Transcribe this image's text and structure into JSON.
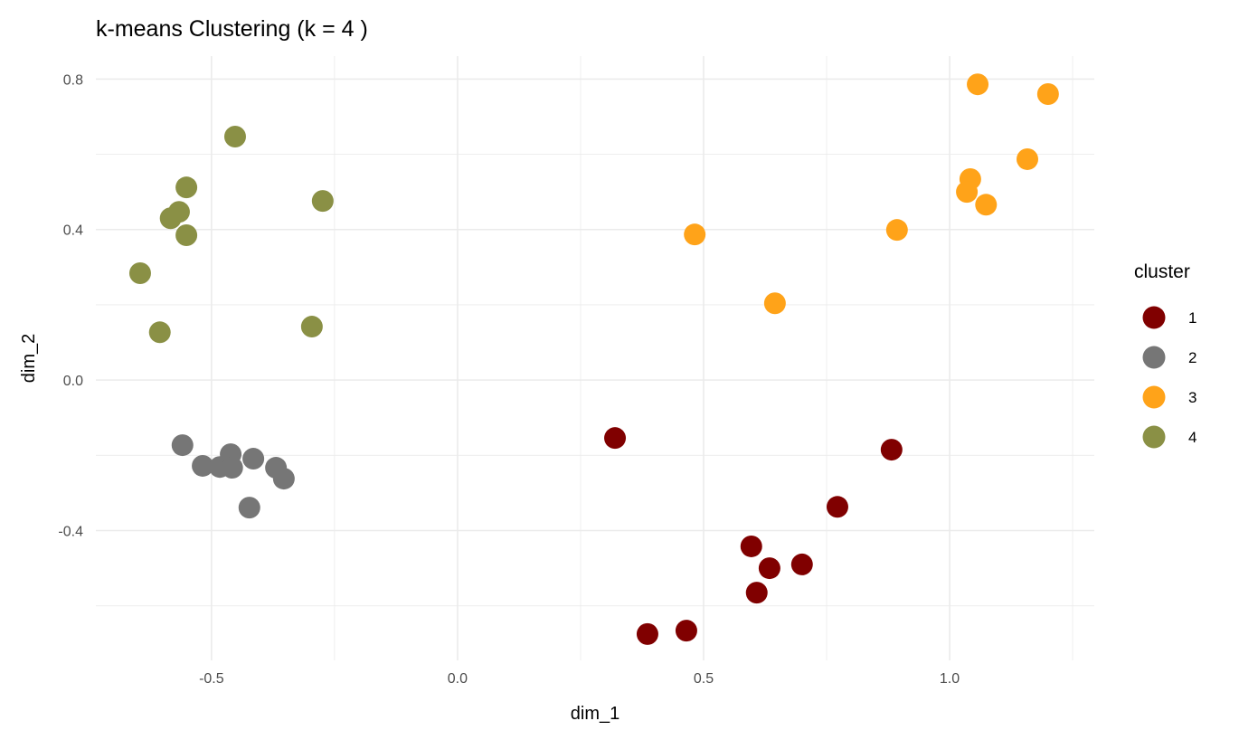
{
  "chart_data": {
    "type": "scatter",
    "title": "k-means Clustering (k = 4 )",
    "xlabel": "dim_1",
    "ylabel": "dim_2",
    "xlim": [
      -0.735,
      1.294
    ],
    "ylim": [
      -0.745,
      0.861
    ],
    "xticks": [
      -0.5,
      0.0,
      0.5,
      1.0
    ],
    "xtick_labels": [
      "-0.5",
      "0.0",
      "0.5",
      "1.0"
    ],
    "yticks": [
      -0.4,
      0.0,
      0.4,
      0.8
    ],
    "ytick_labels": [
      "-0.4",
      "0.0",
      "0.4",
      "0.8"
    ],
    "grid": true,
    "legend": {
      "title": "cluster",
      "placement": "right"
    },
    "series": [
      {
        "name": "1",
        "color": "#800000",
        "points": [
          [
            0.32,
            -0.154
          ],
          [
            0.882,
            -0.185
          ],
          [
            0.772,
            -0.337
          ],
          [
            0.597,
            -0.442
          ],
          [
            0.634,
            -0.5
          ],
          [
            0.7,
            -0.49
          ],
          [
            0.608,
            -0.565
          ],
          [
            0.465,
            -0.666
          ],
          [
            0.386,
            -0.675
          ]
        ]
      },
      {
        "name": "2",
        "color": "#767676",
        "points": [
          [
            -0.559,
            -0.173
          ],
          [
            -0.518,
            -0.228
          ],
          [
            -0.483,
            -0.231
          ],
          [
            -0.461,
            -0.197
          ],
          [
            -0.458,
            -0.233
          ],
          [
            -0.415,
            -0.209
          ],
          [
            -0.369,
            -0.233
          ],
          [
            -0.353,
            -0.262
          ],
          [
            -0.423,
            -0.339
          ]
        ]
      },
      {
        "name": "3",
        "color": "#FFA319",
        "points": [
          [
            1.057,
            0.786
          ],
          [
            1.2,
            0.76
          ],
          [
            1.158,
            0.587
          ],
          [
            1.042,
            0.534
          ],
          [
            1.035,
            0.5
          ],
          [
            1.074,
            0.466
          ],
          [
            0.893,
            0.399
          ],
          [
            0.482,
            0.387
          ],
          [
            0.645,
            0.204
          ]
        ]
      },
      {
        "name": "4",
        "color": "#8A9045",
        "points": [
          [
            -0.452,
            0.647
          ],
          [
            -0.551,
            0.512
          ],
          [
            -0.566,
            0.447
          ],
          [
            -0.583,
            0.43
          ],
          [
            -0.551,
            0.385
          ],
          [
            -0.274,
            0.476
          ],
          [
            -0.645,
            0.284
          ],
          [
            -0.605,
            0.127
          ],
          [
            -0.296,
            0.142
          ]
        ]
      }
    ]
  }
}
